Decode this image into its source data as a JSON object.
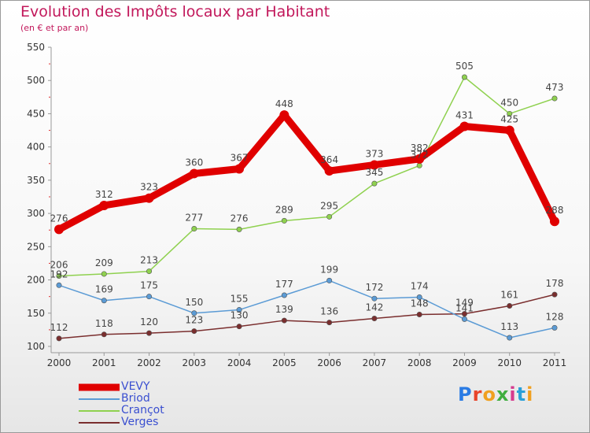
{
  "title": "Evolution des Impôts locaux par Habitant",
  "subtitle": "(en € et par an)",
  "logo": "Proxiti",
  "chart_data": {
    "type": "line",
    "title": "Evolution des Impôts locaux par Habitant",
    "subtitle": "(en € et par an)",
    "xlabel": "",
    "ylabel": "",
    "x": [
      "2000",
      "2001",
      "2002",
      "2003",
      "2004",
      "2005",
      "2006",
      "2007",
      "2008",
      "2009",
      "2010",
      "2011"
    ],
    "ylim": [
      100,
      550
    ],
    "yticks": [
      100,
      150,
      200,
      250,
      300,
      350,
      400,
      450,
      500,
      550
    ],
    "grid": false,
    "legend_position": "bottom-left",
    "series": [
      {
        "name": "VEVY",
        "color": "#e00000",
        "values": [
          276,
          312,
          323,
          360,
          367,
          448,
          364,
          373,
          382,
          431,
          425,
          288
        ]
      },
      {
        "name": "Briod",
        "color": "#5b9bd5",
        "values": [
          192,
          169,
          175,
          150,
          155,
          177,
          199,
          172,
          174,
          141,
          113,
          128
        ]
      },
      {
        "name": "Crançot",
        "color": "#8fd14f",
        "values": [
          206,
          209,
          213,
          277,
          276,
          289,
          295,
          345,
          372,
          505,
          450,
          473
        ]
      },
      {
        "name": "Verges",
        "color": "#7a2e2e",
        "values": [
          112,
          118,
          120,
          123,
          130,
          139,
          136,
          142,
          148,
          149,
          161,
          178
        ]
      }
    ]
  }
}
